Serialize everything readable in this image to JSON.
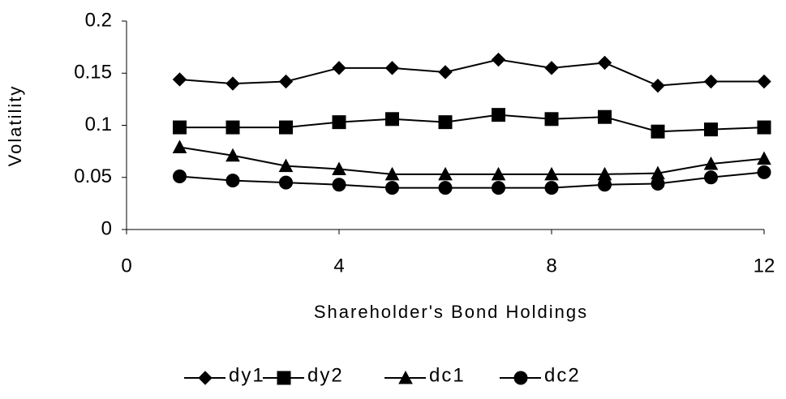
{
  "chart_data": {
    "type": "line",
    "x_label": "Shareholder's Bond Holdings",
    "y_label": "Volatility",
    "x": [
      1,
      2,
      3,
      4,
      5,
      6,
      7,
      8,
      9,
      10,
      11,
      12
    ],
    "xlim": [
      0,
      12
    ],
    "xticks": [
      0,
      4,
      8,
      12
    ],
    "ylim": [
      0,
      0.2
    ],
    "yticks": [
      0,
      0.05,
      0.1,
      0.15,
      0.2
    ],
    "grid": false,
    "legend": "bottom",
    "series": [
      {
        "name": "dy1",
        "color": "#000000",
        "marker": "diamond",
        "values": [
          0.144,
          0.14,
          0.142,
          0.155,
          0.155,
          0.151,
          0.163,
          0.155,
          0.16,
          0.138,
          0.142,
          0.142
        ]
      },
      {
        "name": "dy2",
        "color": "#000000",
        "marker": "square",
        "values": [
          0.098,
          0.098,
          0.098,
          0.103,
          0.106,
          0.103,
          0.11,
          0.106,
          0.108,
          0.094,
          0.096,
          0.098
        ]
      },
      {
        "name": "dc1",
        "color": "#000000",
        "marker": "triangle",
        "values": [
          0.079,
          0.071,
          0.061,
          0.058,
          0.053,
          0.053,
          0.053,
          0.053,
          0.053,
          0.054,
          0.063,
          0.068
        ]
      },
      {
        "name": "dc2",
        "color": "#000000",
        "marker": "circle",
        "values": [
          0.051,
          0.047,
          0.045,
          0.043,
          0.04,
          0.04,
          0.04,
          0.04,
          0.043,
          0.044,
          0.05,
          0.055
        ]
      }
    ]
  }
}
